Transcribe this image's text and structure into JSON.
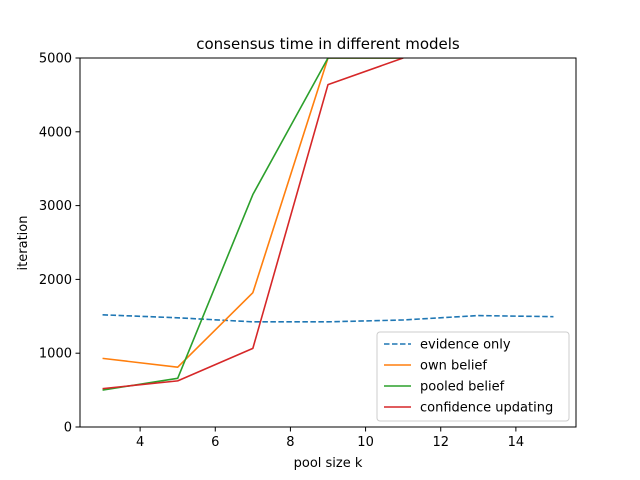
{
  "chart_data": {
    "type": "line",
    "title": "consensus time in different models",
    "xlabel": "pool size k",
    "ylabel": "iteration",
    "xlim": [
      2.4,
      15.6
    ],
    "ylim": [
      0,
      5000
    ],
    "xticks": [
      4,
      6,
      8,
      10,
      12,
      14
    ],
    "yticks": [
      0,
      1000,
      2000,
      3000,
      4000,
      5000
    ],
    "grid": false,
    "legend_position": "lower-right",
    "series": [
      {
        "name": "evidence only",
        "color": "#1f77b4",
        "dash": "dashed",
        "x": [
          3,
          5,
          7,
          9,
          11,
          13,
          15
        ],
        "y": [
          1520,
          1480,
          1425,
          1425,
          1450,
          1510,
          1495
        ]
      },
      {
        "name": "own belief",
        "color": "#ff7f0e",
        "dash": "solid",
        "x": [
          3,
          5,
          7,
          9,
          11
        ],
        "y": [
          930,
          810,
          1820,
          5000,
          5000
        ]
      },
      {
        "name": "pooled belief",
        "color": "#2ca02c",
        "dash": "solid",
        "x": [
          3,
          5,
          7,
          9,
          11
        ],
        "y": [
          500,
          660,
          3150,
          5000,
          5000
        ]
      },
      {
        "name": "confidence updating",
        "color": "#d62728",
        "dash": "solid",
        "x": [
          3,
          5,
          7,
          9,
          11
        ],
        "y": [
          520,
          625,
          1065,
          4640,
          5000
        ]
      }
    ]
  }
}
